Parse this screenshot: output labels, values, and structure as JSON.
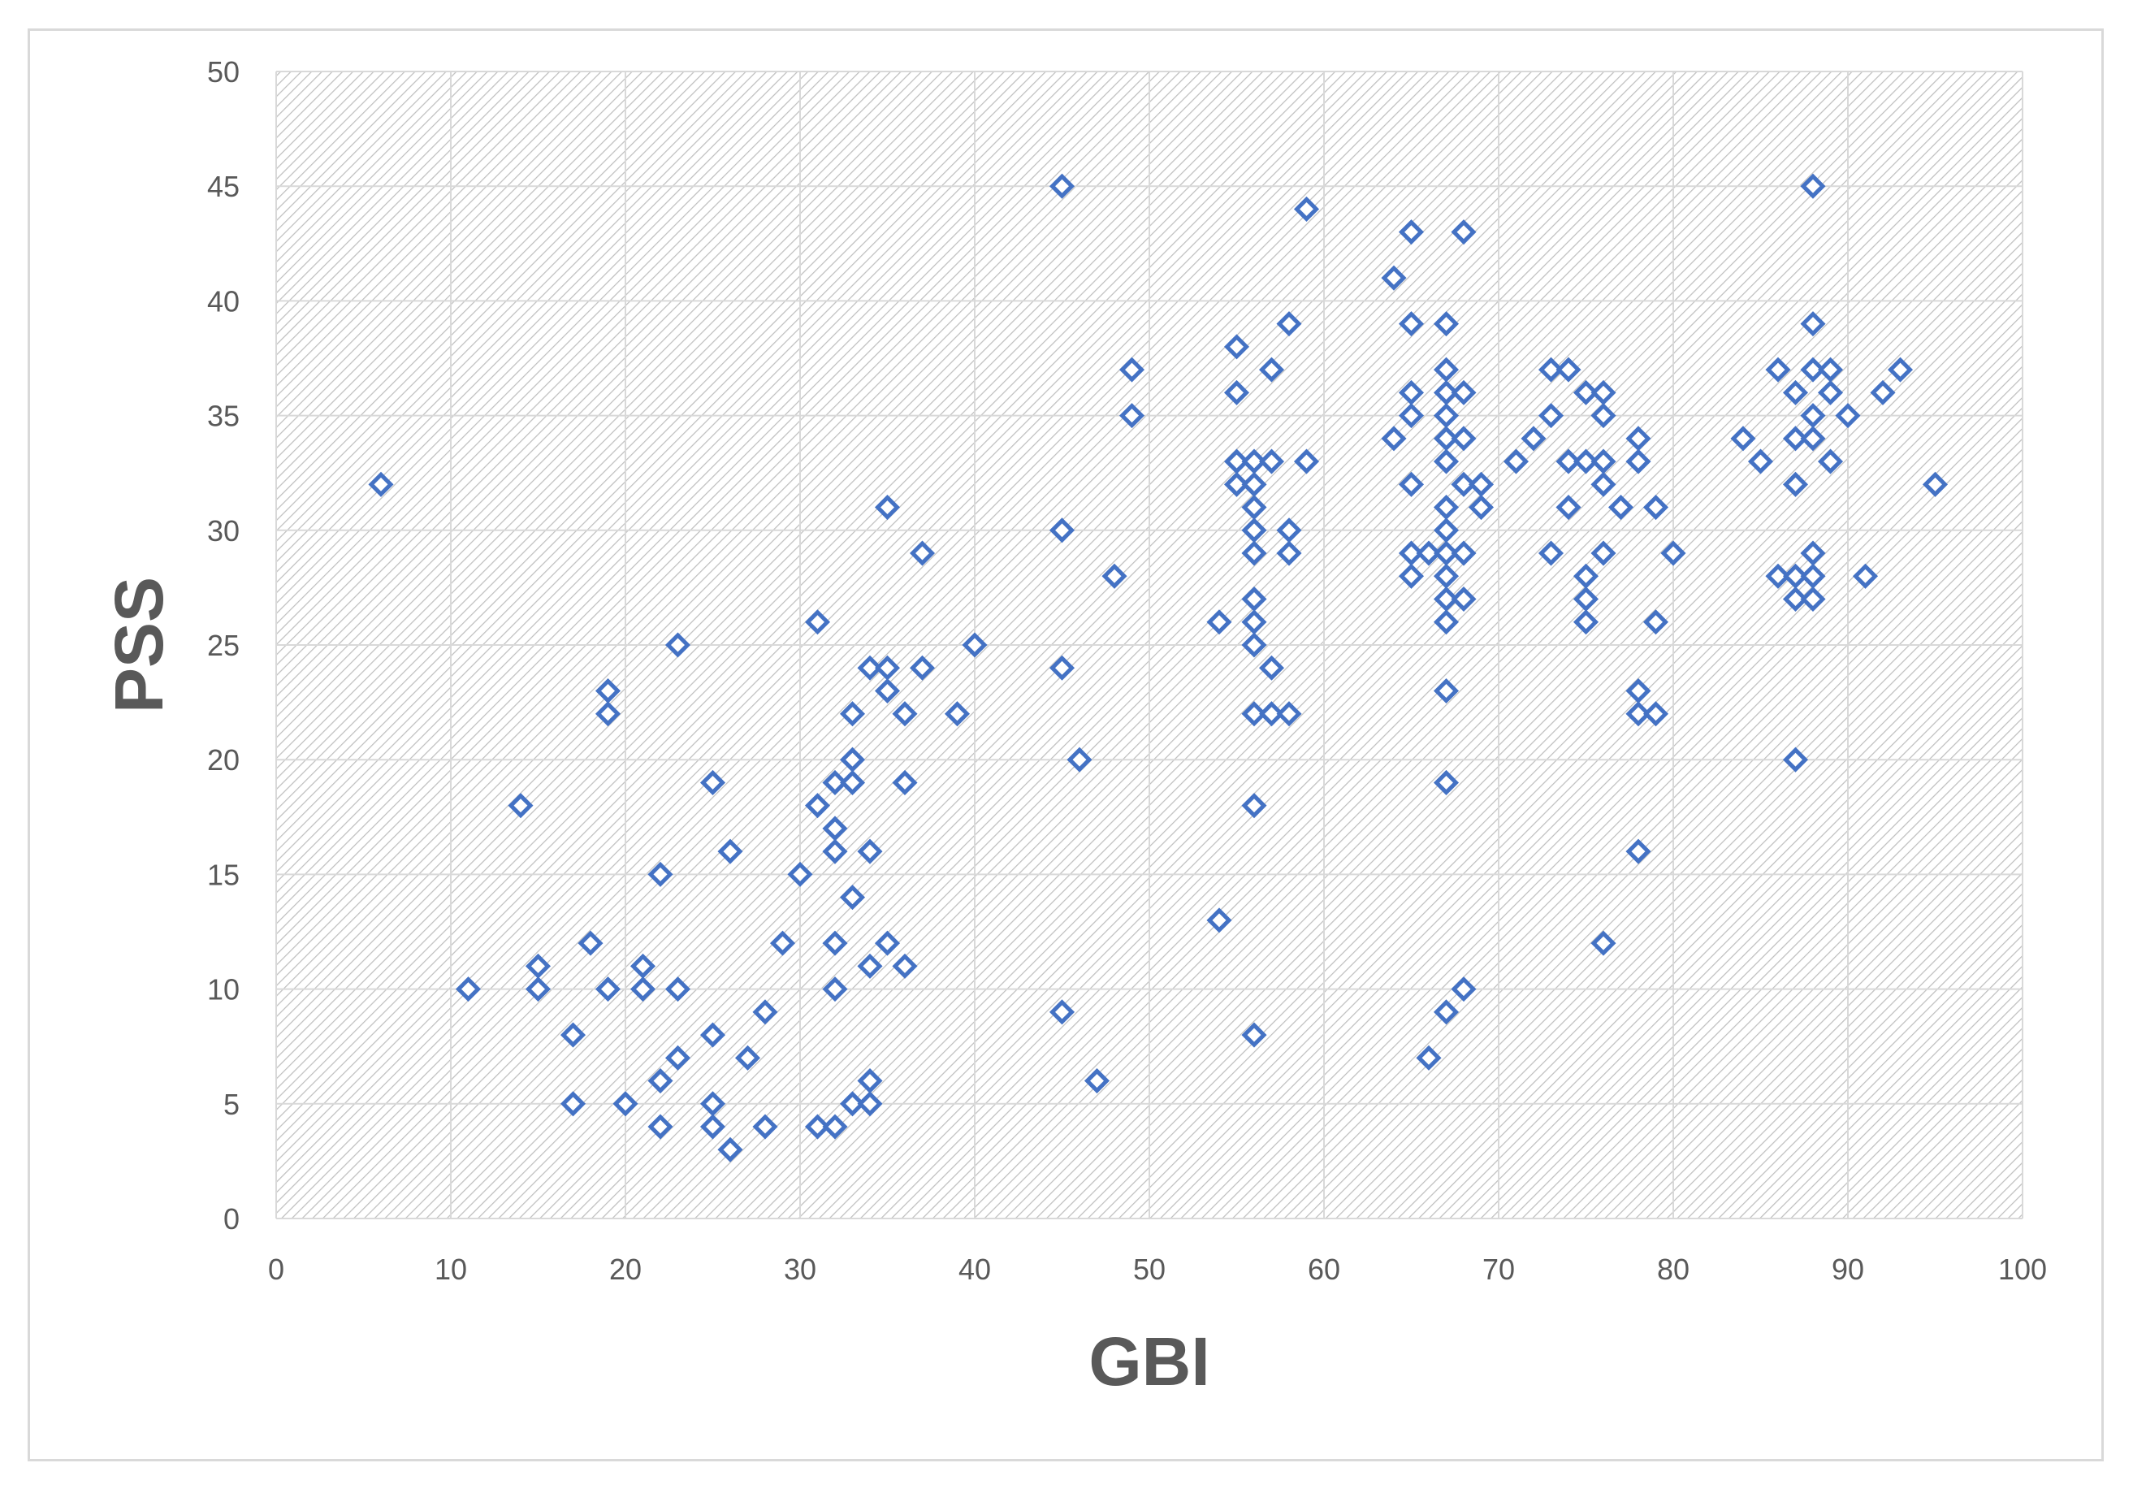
{
  "chart_data": {
    "type": "scatter",
    "xlabel": "GBI",
    "ylabel": "PSS",
    "xlim": [
      0,
      100
    ],
    "ylim": [
      0,
      50
    ],
    "x_ticks": [
      0,
      10,
      20,
      30,
      40,
      50,
      60,
      70,
      80,
      90,
      100
    ],
    "y_ticks": [
      0,
      5,
      10,
      15,
      20,
      25,
      30,
      35,
      40,
      45,
      50
    ],
    "grid": true,
    "legend": "none",
    "marker": "hollow-diamond",
    "colors": {
      "marker": "#4472c4",
      "grid": "#d9d9d9",
      "plot_hatch": "#bfbfbf",
      "text": "#595959"
    },
    "points": [
      [
        6,
        32
      ],
      [
        11,
        10
      ],
      [
        14,
        18
      ],
      [
        15,
        11
      ],
      [
        15,
        10
      ],
      [
        17,
        8
      ],
      [
        17,
        5
      ],
      [
        18,
        12
      ],
      [
        19,
        23
      ],
      [
        19,
        22
      ],
      [
        19,
        10
      ],
      [
        20,
        5
      ],
      [
        21,
        11
      ],
      [
        21,
        10
      ],
      [
        22,
        15
      ],
      [
        22,
        6
      ],
      [
        22,
        4
      ],
      [
        23,
        25
      ],
      [
        23,
        10
      ],
      [
        23,
        7
      ],
      [
        25,
        19
      ],
      [
        25,
        8
      ],
      [
        25,
        5
      ],
      [
        25,
        4
      ],
      [
        26,
        16
      ],
      [
        26,
        3
      ],
      [
        27,
        7
      ],
      [
        28,
        9
      ],
      [
        28,
        4
      ],
      [
        29,
        12
      ],
      [
        30,
        15
      ],
      [
        31,
        26
      ],
      [
        31,
        18
      ],
      [
        31,
        4
      ],
      [
        32,
        19
      ],
      [
        32,
        17
      ],
      [
        32,
        16
      ],
      [
        32,
        12
      ],
      [
        32,
        10
      ],
      [
        32,
        4
      ],
      [
        33,
        22
      ],
      [
        33,
        20
      ],
      [
        33,
        19
      ],
      [
        33,
        14
      ],
      [
        33,
        5
      ],
      [
        34,
        24
      ],
      [
        34,
        16
      ],
      [
        34,
        11
      ],
      [
        34,
        6
      ],
      [
        34,
        5
      ],
      [
        35,
        31
      ],
      [
        35,
        24
      ],
      [
        35,
        23
      ],
      [
        35,
        12
      ],
      [
        36,
        22
      ],
      [
        36,
        19
      ],
      [
        36,
        11
      ],
      [
        37,
        29
      ],
      [
        37,
        24
      ],
      [
        39,
        22
      ],
      [
        40,
        25
      ],
      [
        45,
        45
      ],
      [
        45,
        30
      ],
      [
        45,
        24
      ],
      [
        45,
        9
      ],
      [
        46,
        20
      ],
      [
        47,
        6
      ],
      [
        48,
        28
      ],
      [
        49,
        37
      ],
      [
        49,
        35
      ],
      [
        54,
        26
      ],
      [
        54,
        13
      ],
      [
        55,
        38
      ],
      [
        55,
        36
      ],
      [
        55,
        33
      ],
      [
        55,
        32
      ],
      [
        56,
        33
      ],
      [
        56,
        32
      ],
      [
        56,
        31
      ],
      [
        56,
        30
      ],
      [
        56,
        29
      ],
      [
        56,
        27
      ],
      [
        56,
        26
      ],
      [
        56,
        25
      ],
      [
        56,
        22
      ],
      [
        56,
        18
      ],
      [
        56,
        8
      ],
      [
        57,
        37
      ],
      [
        57,
        33
      ],
      [
        57,
        24
      ],
      [
        57,
        22
      ],
      [
        58,
        39
      ],
      [
        58,
        30
      ],
      [
        58,
        29
      ],
      [
        58,
        22
      ],
      [
        59,
        44
      ],
      [
        59,
        33
      ],
      [
        64,
        41
      ],
      [
        64,
        34
      ],
      [
        65,
        43
      ],
      [
        65,
        39
      ],
      [
        65,
        36
      ],
      [
        65,
        35
      ],
      [
        65,
        32
      ],
      [
        65,
        29
      ],
      [
        65,
        28
      ],
      [
        66,
        29
      ],
      [
        66,
        7
      ],
      [
        67,
        39
      ],
      [
        67,
        37
      ],
      [
        67,
        36
      ],
      [
        67,
        35
      ],
      [
        67,
        34
      ],
      [
        67,
        33
      ],
      [
        67,
        31
      ],
      [
        67,
        30
      ],
      [
        67,
        29
      ],
      [
        67,
        28
      ],
      [
        67,
        27
      ],
      [
        67,
        26
      ],
      [
        67,
        23
      ],
      [
        67,
        19
      ],
      [
        67,
        9
      ],
      [
        68,
        43
      ],
      [
        68,
        36
      ],
      [
        68,
        34
      ],
      [
        68,
        32
      ],
      [
        68,
        29
      ],
      [
        68,
        27
      ],
      [
        68,
        10
      ],
      [
        69,
        32
      ],
      [
        69,
        31
      ],
      [
        71,
        33
      ],
      [
        72,
        34
      ],
      [
        73,
        37
      ],
      [
        73,
        35
      ],
      [
        73,
        29
      ],
      [
        74,
        37
      ],
      [
        74,
        33
      ],
      [
        74,
        31
      ],
      [
        75,
        36
      ],
      [
        75,
        33
      ],
      [
        75,
        28
      ],
      [
        75,
        27
      ],
      [
        75,
        26
      ],
      [
        76,
        36
      ],
      [
        76,
        35
      ],
      [
        76,
        33
      ],
      [
        76,
        32
      ],
      [
        76,
        29
      ],
      [
        76,
        12
      ],
      [
        77,
        31
      ],
      [
        78,
        34
      ],
      [
        78,
        33
      ],
      [
        78,
        23
      ],
      [
        78,
        22
      ],
      [
        78,
        16
      ],
      [
        79,
        31
      ],
      [
        79,
        26
      ],
      [
        79,
        22
      ],
      [
        80,
        29
      ],
      [
        84,
        34
      ],
      [
        85,
        33
      ],
      [
        86,
        37
      ],
      [
        86,
        28
      ],
      [
        87,
        36
      ],
      [
        87,
        34
      ],
      [
        87,
        32
      ],
      [
        87,
        28
      ],
      [
        87,
        27
      ],
      [
        87,
        20
      ],
      [
        88,
        45
      ],
      [
        88,
        39
      ],
      [
        88,
        37
      ],
      [
        88,
        35
      ],
      [
        88,
        34
      ],
      [
        88,
        29
      ],
      [
        88,
        28
      ],
      [
        88,
        27
      ],
      [
        89,
        37
      ],
      [
        89,
        36
      ],
      [
        89,
        33
      ],
      [
        90,
        35
      ],
      [
        91,
        28
      ],
      [
        92,
        36
      ],
      [
        93,
        37
      ],
      [
        95,
        32
      ]
    ]
  }
}
